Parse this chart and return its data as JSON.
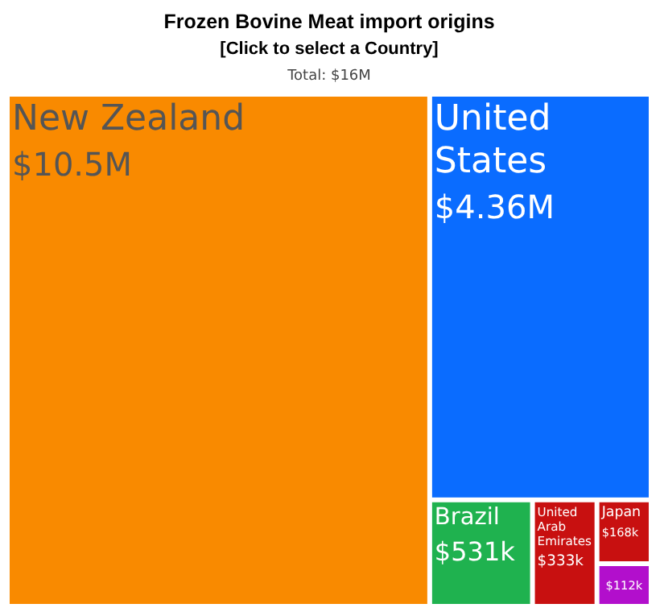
{
  "chart_data": {
    "type": "other",
    "title": "Frozen Bovine Meat import origins",
    "subtitle": "[Click to select a Country]",
    "annotations": [
      "Total: $16M"
    ],
    "categories": [
      "New Zealand",
      "United States",
      "Brazil",
      "United Arab Emirates",
      "Japan",
      null
    ],
    "values": [
      10500000,
      4360000,
      531000,
      333000,
      168000,
      112000
    ],
    "value_labels": [
      "$10.5M",
      "$4.36M",
      "$531k",
      "$333k",
      "$168k",
      "$112k"
    ],
    "colors": [
      "#f98a00",
      "#0a6cff",
      "#1fb24f",
      "#c81010",
      "#c81010",
      "#b20fcc"
    ]
  }
}
